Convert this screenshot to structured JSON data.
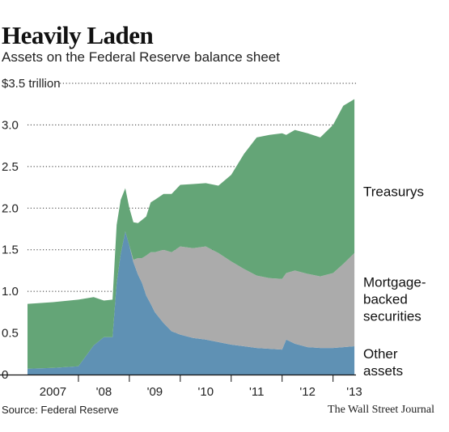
{
  "title": "Heavily Laden",
  "subtitle": "Assets on the Federal Reserve balance sheet",
  "source": "Source: Federal Reserve",
  "publisher": "The Wall Street Journal",
  "colors": {
    "treasurys": "#64a577",
    "mbs": "#ababab",
    "other": "#5f91b4"
  },
  "chart_data": {
    "type": "area",
    "stacked": true,
    "xlim": [
      2007.0,
      2013.45
    ],
    "ylim": [
      0,
      3.5
    ],
    "y_ticks": [
      {
        "value": 0,
        "label": "0"
      },
      {
        "value": 0.5,
        "label": "0.5"
      },
      {
        "value": 1.0,
        "label": "1.0"
      },
      {
        "value": 1.5,
        "label": "1.5"
      },
      {
        "value": 2.0,
        "label": "2.0"
      },
      {
        "value": 2.5,
        "label": "2.5"
      },
      {
        "value": 3.0,
        "label": "3.0"
      },
      {
        "value": 3.5,
        "label": "$3.5 trillion"
      }
    ],
    "x_ticks": [
      {
        "value": 2007.5,
        "label": "2007"
      },
      {
        "value": 2008.5,
        "label": "'08"
      },
      {
        "value": 2009.5,
        "label": "'09"
      },
      {
        "value": 2010.5,
        "label": "'10"
      },
      {
        "value": 2011.5,
        "label": "'11"
      },
      {
        "value": 2012.5,
        "label": "'12"
      },
      {
        "value": 2013.5,
        "label": "'13"
      }
    ],
    "grid": "dotted-horizontal",
    "x": [
      2007.0,
      2007.5,
      2008.0,
      2008.3,
      2008.5,
      2008.67,
      2008.75,
      2008.83,
      2008.92,
      2009.0,
      2009.08,
      2009.17,
      2009.25,
      2009.33,
      2009.42,
      2009.5,
      2009.67,
      2009.83,
      2010.0,
      2010.25,
      2010.5,
      2010.75,
      2011.0,
      2011.25,
      2011.5,
      2011.75,
      2012.0,
      2012.08,
      2012.25,
      2012.5,
      2012.75,
      2013.0,
      2013.2,
      2013.42
    ],
    "series": [
      {
        "name": "Other assets",
        "values": [
          0.07,
          0.08,
          0.1,
          0.35,
          0.45,
          0.45,
          1.1,
          1.45,
          1.72,
          1.55,
          1.35,
          1.2,
          1.1,
          0.95,
          0.85,
          0.75,
          0.62,
          0.52,
          0.48,
          0.44,
          0.42,
          0.39,
          0.36,
          0.34,
          0.32,
          0.31,
          0.3,
          0.42,
          0.37,
          0.33,
          0.32,
          0.32,
          0.33,
          0.34
        ]
      },
      {
        "name": "Mortgage-backed securities",
        "values": [
          0,
          0,
          0,
          0,
          0,
          0,
          0,
          0,
          0,
          0,
          0.03,
          0.2,
          0.3,
          0.48,
          0.62,
          0.72,
          0.88,
          0.95,
          1.06,
          1.08,
          1.12,
          1.07,
          1.0,
          0.93,
          0.87,
          0.85,
          0.85,
          0.8,
          0.88,
          0.88,
          0.86,
          0.9,
          1.0,
          1.12
        ]
      },
      {
        "name": "Treasurys",
        "values": [
          0.78,
          0.79,
          0.8,
          0.58,
          0.44,
          0.45,
          0.7,
          0.65,
          0.52,
          0.45,
          0.45,
          0.42,
          0.46,
          0.47,
          0.6,
          0.63,
          0.67,
          0.7,
          0.74,
          0.77,
          0.76,
          0.81,
          1.04,
          1.38,
          1.66,
          1.72,
          1.75,
          1.66,
          1.69,
          1.69,
          1.67,
          1.78,
          1.9,
          1.85
        ]
      }
    ],
    "series_labels": [
      {
        "series": "Treasurys",
        "lines": [
          "Treasurys"
        ],
        "y": 2.2
      },
      {
        "series": "Mortgage-backed securities",
        "lines": [
          "Mortgage-",
          "backed",
          "securities"
        ],
        "y": 0.91
      },
      {
        "series": "Other assets",
        "lines": [
          "Other",
          "assets"
        ],
        "y": 0.15
      }
    ]
  }
}
